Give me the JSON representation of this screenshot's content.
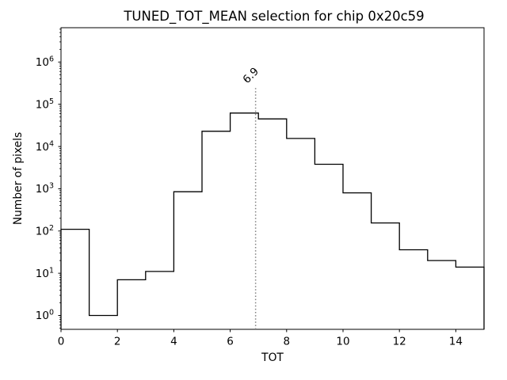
{
  "chart_data": {
    "type": "histogram-step",
    "title": "TUNED_TOT_MEAN selection for chip 0x20c59",
    "xlabel": "TOT",
    "ylabel": "Number of pixels",
    "yscale": "log",
    "grid": false,
    "legend": null,
    "bin_edges": [
      0,
      1,
      2,
      3,
      4,
      5,
      6,
      7,
      8,
      9,
      10,
      11,
      12,
      13,
      14,
      15
    ],
    "counts": [
      110,
      1,
      7,
      11,
      850,
      23000,
      62000,
      45000,
      15500,
      3800,
      800,
      155,
      36,
      20,
      14
    ],
    "xlim": [
      0,
      15
    ],
    "ylim": [
      0.47,
      6500000
    ],
    "xticks": [
      0,
      2,
      4,
      6,
      8,
      10,
      12,
      14
    ],
    "ytick_exponents": [
      0,
      1,
      2,
      3,
      4,
      5,
      6
    ],
    "line_color": "#000000",
    "spine_color": "#000000",
    "vline": {
      "x": 6.9,
      "label": "6.9",
      "color": "#808080",
      "style": "dotted",
      "ymax_frac": 0.8,
      "label_rotation_deg": -45
    }
  }
}
